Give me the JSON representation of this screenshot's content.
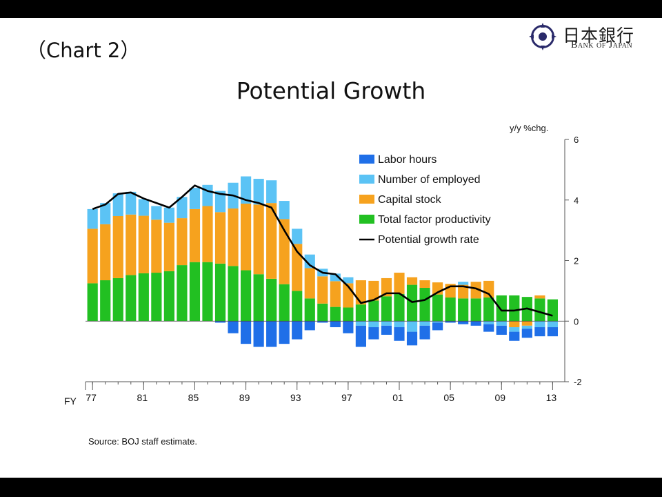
{
  "header": {
    "chart_label": "（Chart 2）",
    "logo_kanji": "日本銀行",
    "logo_english": "Bank of Japan"
  },
  "colors": {
    "labor_hours": "#1F6FE8",
    "number_employed": "#5BC3F5",
    "capital_stock": "#F6A21E",
    "tfp": "#22C022",
    "potential_line": "#000000",
    "band": "#000000",
    "logo_navy": "#2A2A6A"
  },
  "chart_data": {
    "type": "bar",
    "stacked": true,
    "title": "Potential Growth",
    "xlabel": "FY",
    "ylabel": "y/y %chg.",
    "ylim": [
      -2,
      6
    ],
    "yticks": [
      "6",
      "4",
      "2",
      "0",
      "-2"
    ],
    "ytick_values": [
      6,
      4,
      2,
      0,
      -2
    ],
    "xticks": [
      "77",
      "81",
      "85",
      "89",
      "93",
      "97",
      "01",
      "05",
      "09",
      "13"
    ],
    "x": [
      1977,
      1978,
      1979,
      1980,
      1981,
      1982,
      1983,
      1984,
      1985,
      1986,
      1987,
      1988,
      1989,
      1990,
      1991,
      1992,
      1993,
      1994,
      1995,
      1996,
      1997,
      1998,
      1999,
      2000,
      2001,
      2002,
      2003,
      2004,
      2005,
      2006,
      2007,
      2008,
      2009,
      2010,
      2011,
      2012,
      2013
    ],
    "legend_position": "top-right",
    "series": [
      {
        "name": "Labor hours",
        "values": [
          0,
          0,
          0,
          0,
          0,
          0,
          0,
          0,
          0,
          0,
          -0.05,
          -0.4,
          -0.75,
          -0.85,
          -0.85,
          -0.75,
          -0.6,
          -0.3,
          -0.05,
          -0.2,
          -0.4,
          -0.7,
          -0.4,
          -0.3,
          -0.45,
          -0.45,
          -0.45,
          -0.25,
          -0.05,
          -0.1,
          -0.15,
          -0.25,
          -0.3,
          -0.3,
          -0.3,
          -0.3,
          -0.3
        ]
      },
      {
        "name": "Number of employed",
        "values": [
          0.65,
          0.7,
          0.75,
          0.75,
          0.55,
          0.45,
          0.5,
          0.7,
          0.7,
          0.7,
          0.7,
          0.85,
          0.9,
          0.85,
          0.75,
          0.6,
          0.5,
          0.45,
          0.25,
          0.25,
          0.2,
          -0.15,
          -0.2,
          -0.15,
          -0.2,
          -0.35,
          -0.15,
          -0.05,
          0,
          0.1,
          0,
          -0.1,
          -0.15,
          -0.15,
          -0.1,
          -0.2,
          -0.2
        ]
      },
      {
        "name": "Capital stock",
        "values": [
          1.8,
          1.85,
          2.05,
          2.0,
          1.9,
          1.75,
          1.6,
          1.55,
          1.75,
          1.85,
          1.7,
          1.9,
          2.2,
          2.3,
          2.5,
          2.15,
          1.55,
          1.0,
          0.9,
          0.85,
          0.8,
          0.8,
          0.65,
          0.6,
          0.7,
          0.25,
          0.25,
          0.4,
          0.45,
          0.45,
          0.55,
          0.55,
          0,
          -0.2,
          -0.15,
          0.1,
          0
        ]
      },
      {
        "name": "Total factor productivity",
        "values": [
          1.25,
          1.35,
          1.42,
          1.52,
          1.58,
          1.6,
          1.65,
          1.85,
          1.95,
          1.95,
          1.9,
          1.82,
          1.68,
          1.55,
          1.4,
          1.22,
          1.0,
          0.75,
          0.58,
          0.47,
          0.45,
          0.55,
          0.68,
          0.82,
          0.9,
          1.2,
          1.1,
          0.88,
          0.78,
          0.75,
          0.75,
          0.78,
          0.85,
          0.85,
          0.8,
          0.75,
          0.72
        ]
      },
      {
        "name": "Potential growth rate",
        "type": "line",
        "values": [
          3.7,
          3.85,
          4.2,
          4.25,
          4.05,
          3.9,
          3.75,
          4.1,
          4.48,
          4.3,
          4.2,
          4.15,
          4.0,
          3.9,
          3.75,
          3.0,
          2.3,
          1.85,
          1.6,
          1.55,
          1.15,
          0.6,
          0.7,
          0.92,
          0.92,
          0.63,
          0.7,
          0.95,
          1.15,
          1.15,
          1.08,
          0.9,
          0.35,
          0.35,
          0.42,
          0.3,
          0.18
        ]
      }
    ]
  },
  "footer": {
    "source": "Source: BOJ staff estimate."
  }
}
